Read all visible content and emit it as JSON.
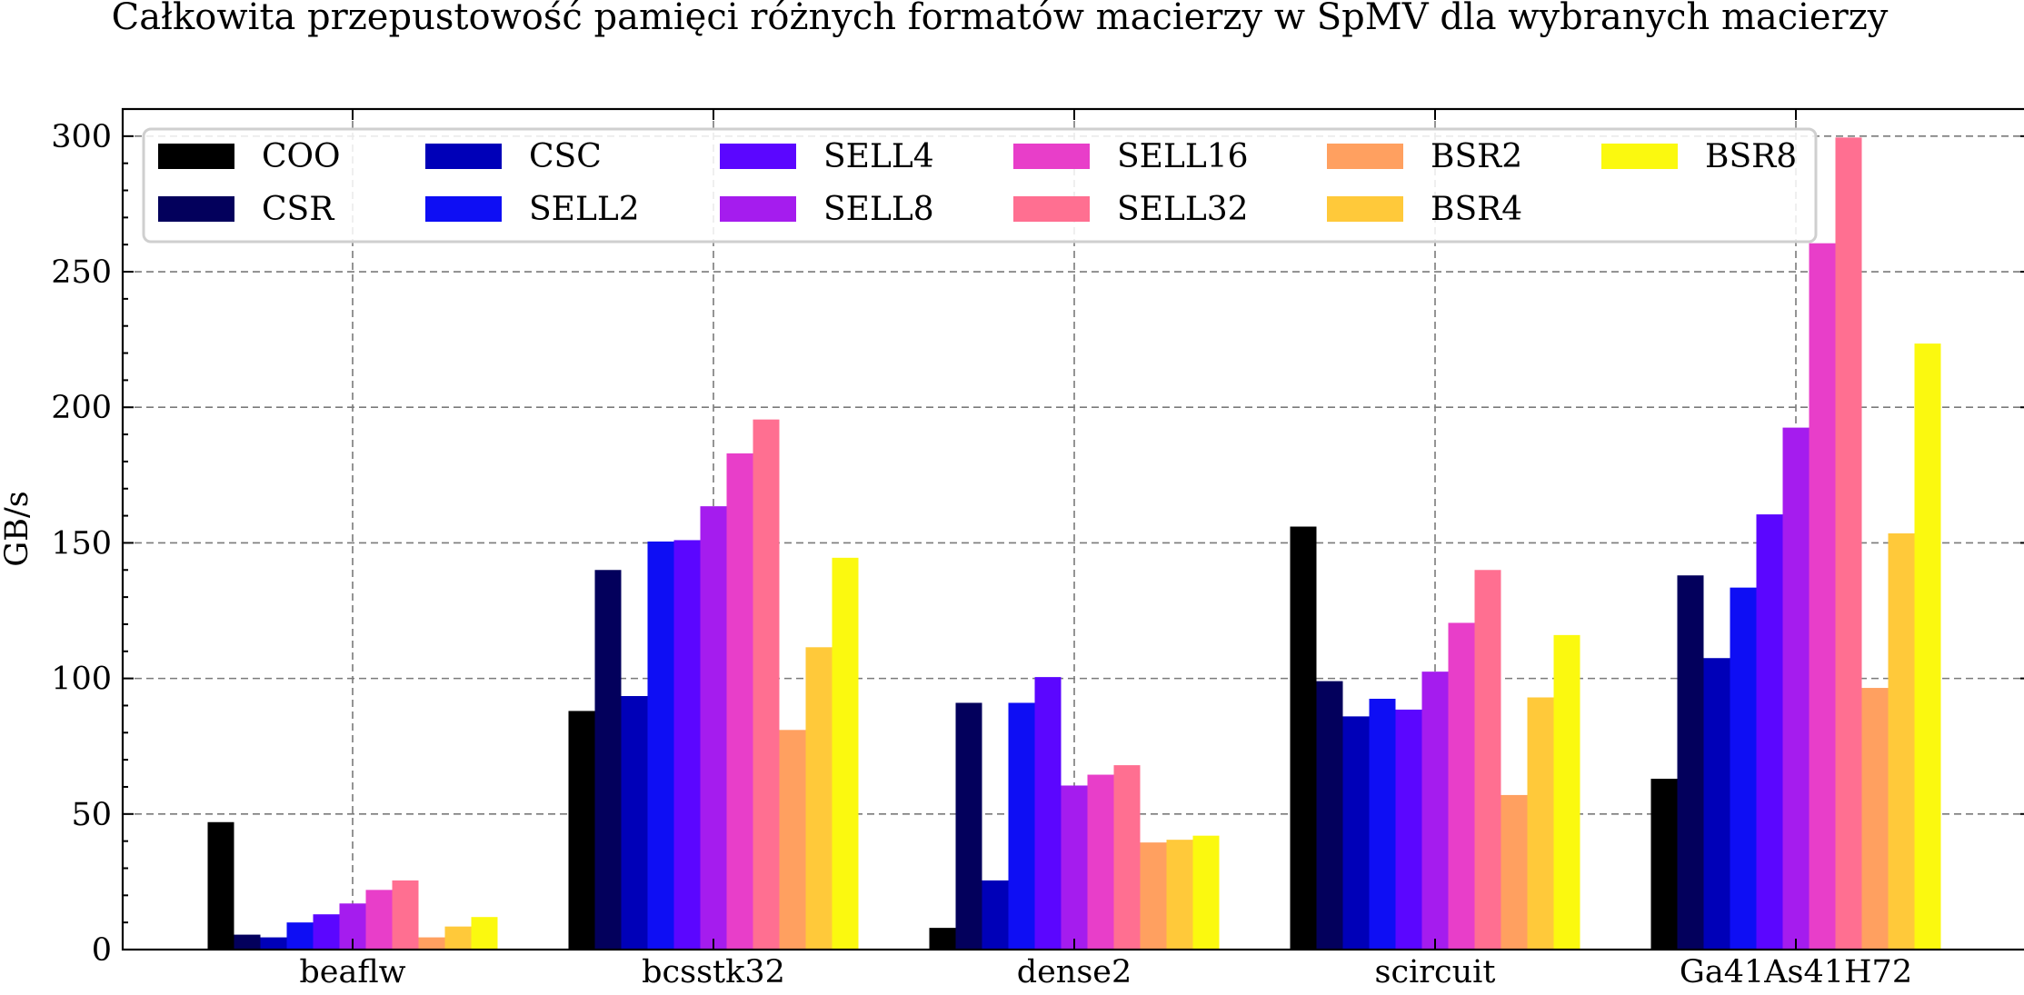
{
  "chart_data": {
    "type": "bar",
    "title": "Całkowita przepustowość pamięci różnych formatów macierzy w SpMV dla wybranych macierzy",
    "xlabel": "",
    "ylabel": "GB/s",
    "ylim": [
      0,
      310
    ],
    "yticks": [
      0,
      50,
      100,
      150,
      200,
      250,
      300
    ],
    "grid": true,
    "legend_position": "top",
    "categories": [
      "beaflw",
      "bcsstk32",
      "dense2",
      "scircuit",
      "Ga41As41H72"
    ],
    "series": [
      {
        "name": "COO",
        "color": "#000000",
        "values": [
          47,
          88,
          8,
          156,
          63
        ]
      },
      {
        "name": "CSR",
        "color": "#03005c",
        "values": [
          5.5,
          140,
          91,
          99,
          138
        ]
      },
      {
        "name": "CSC",
        "color": "#0000b8",
        "values": [
          4.5,
          93.5,
          25.5,
          86,
          107.5
        ]
      },
      {
        "name": "SELL2",
        "color": "#0e0ef4",
        "values": [
          10,
          150.5,
          91,
          92.5,
          133.5
        ]
      },
      {
        "name": "SELL4",
        "color": "#5b06ff",
        "values": [
          13,
          151,
          100.5,
          88.5,
          160.5
        ]
      },
      {
        "name": "SELL8",
        "color": "#a51cee",
        "values": [
          17,
          163.5,
          60.5,
          102.5,
          192.5
        ]
      },
      {
        "name": "SELL16",
        "color": "#e83ec9",
        "values": [
          22,
          183,
          64.5,
          120.5,
          260.5
        ]
      },
      {
        "name": "SELL32",
        "color": "#ff6f91",
        "values": [
          25.5,
          195.5,
          68,
          140,
          299.5
        ]
      },
      {
        "name": "BSR2",
        "color": "#ffa060",
        "values": [
          4.5,
          81,
          39.5,
          57,
          96.5
        ]
      },
      {
        "name": "BSR4",
        "color": "#ffc93a",
        "values": [
          8.5,
          111.5,
          40.5,
          93,
          153.5
        ]
      },
      {
        "name": "BSR8",
        "color": "#fbf90f",
        "values": [
          12,
          144.5,
          42,
          116,
          223.5
        ]
      }
    ]
  }
}
